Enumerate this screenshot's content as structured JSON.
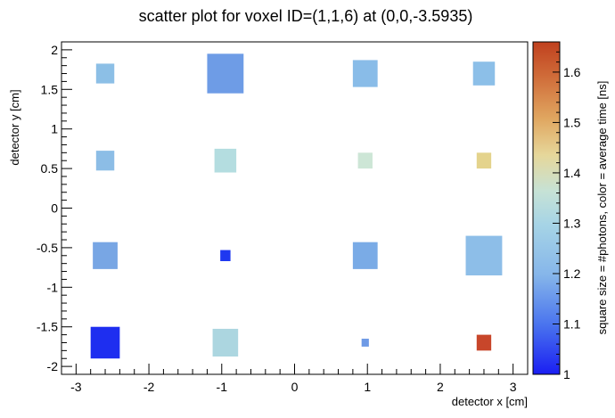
{
  "chart_data": {
    "type": "scatter",
    "title": "scatter plot for voxel ID=(1,1,6) at (0,0,-3.5935)",
    "xlabel": "detector x [cm]",
    "ylabel": "detector y [cm]",
    "colorbar_label": "square size = #photons, color = average time [ns]",
    "xlim": [
      -3.2,
      3.2
    ],
    "ylim": [
      -2.1,
      2.1
    ],
    "xticks": [
      "-3",
      "-2",
      "-1",
      "0",
      "1",
      "2",
      "3"
    ],
    "xtick_values": [
      -3,
      -2,
      -1,
      0,
      1,
      2,
      3
    ],
    "yticks": [
      "-2",
      "-1.5",
      "-1",
      "-0.5",
      "0",
      "0.5",
      "1",
      "1.5",
      "2"
    ],
    "ytick_values": [
      -2,
      -1.5,
      -1,
      -0.5,
      0,
      0.5,
      1,
      1.5,
      2
    ],
    "colorbar_range": [
      1.0,
      1.66
    ],
    "colorbar_ticks": [
      "1",
      "1.1",
      "1.2",
      "1.3",
      "1.4",
      "1.5",
      "1.6"
    ],
    "colorbar_tick_values": [
      1.0,
      1.1,
      1.2,
      1.3,
      1.4,
      1.5,
      1.6
    ],
    "grid": false,
    "points": [
      {
        "x": -2.6,
        "y": 1.7,
        "size": 0.25,
        "color": "#8cbfe6",
        "time": 1.21
      },
      {
        "x": -0.95,
        "y": 1.7,
        "size": 0.5,
        "color": "#6e9ce6",
        "time": 1.16
      },
      {
        "x": 0.97,
        "y": 1.7,
        "size": 0.34,
        "color": "#89bce8",
        "time": 1.2
      },
      {
        "x": 2.6,
        "y": 1.7,
        "size": 0.3,
        "color": "#8cbfe8",
        "time": 1.21
      },
      {
        "x": -2.6,
        "y": 0.6,
        "size": 0.25,
        "color": "#8cbde6",
        "time": 1.21
      },
      {
        "x": -0.95,
        "y": 0.6,
        "size": 0.3,
        "color": "#b4dde0",
        "time": 1.3
      },
      {
        "x": 0.97,
        "y": 0.6,
        "size": 0.2,
        "color": "#cde6d6",
        "time": 1.35
      },
      {
        "x": 2.6,
        "y": 0.6,
        "size": 0.2,
        "color": "#e4d38c",
        "time": 1.44
      },
      {
        "x": -2.6,
        "y": -0.6,
        "size": 0.34,
        "color": "#78a6e4",
        "time": 1.17
      },
      {
        "x": -0.95,
        "y": -0.6,
        "size": 0.14,
        "color": "#1e38f0",
        "time": 1.02
      },
      {
        "x": 0.97,
        "y": -0.6,
        "size": 0.34,
        "color": "#7aabe6",
        "time": 1.18
      },
      {
        "x": 2.6,
        "y": -0.6,
        "size": 0.5,
        "color": "#8dbee8",
        "time": 1.21
      },
      {
        "x": -2.6,
        "y": -1.7,
        "size": 0.4,
        "color": "#1e2ef0",
        "time": 1.01
      },
      {
        "x": -0.95,
        "y": -1.7,
        "size": 0.35,
        "color": "#acd6e0",
        "time": 1.28
      },
      {
        "x": 0.97,
        "y": -1.7,
        "size": 0.1,
        "color": "#6e9ae6",
        "time": 1.15
      },
      {
        "x": 2.6,
        "y": -1.7,
        "size": 0.2,
        "color": "#c8462a",
        "time": 1.62
      }
    ]
  }
}
